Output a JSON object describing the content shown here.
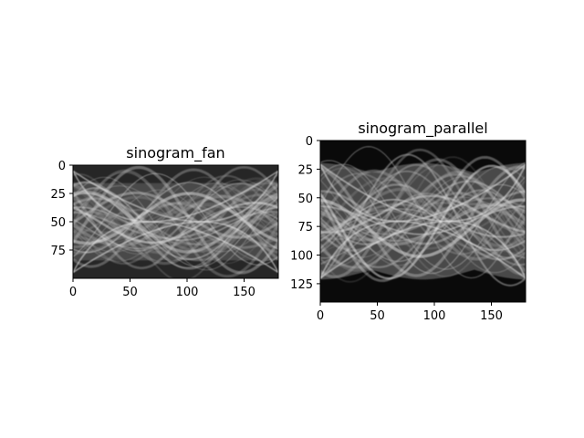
{
  "chart_data": [
    {
      "type": "heatmap",
      "title": "sinogram_fan",
      "colormap": "gray",
      "grid": false,
      "xlim": [
        0,
        180
      ],
      "ylim": [
        100,
        0
      ],
      "xticks": [
        0,
        50,
        100,
        150
      ],
      "yticks": [
        0,
        25,
        50,
        75
      ],
      "xlabel": "",
      "ylabel": ""
    },
    {
      "type": "heatmap",
      "title": "sinogram_parallel",
      "colormap": "gray",
      "grid": false,
      "xlim": [
        0,
        180
      ],
      "ylim": [
        141,
        0
      ],
      "xticks": [
        0,
        50,
        100,
        150
      ],
      "yticks": [
        0,
        25,
        50,
        75,
        100,
        125
      ],
      "xlabel": "",
      "ylabel": ""
    }
  ]
}
